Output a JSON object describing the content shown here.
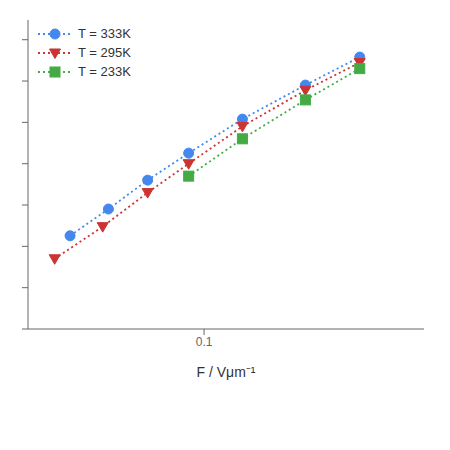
{
  "chart_data": {
    "type": "line",
    "xlabel": "F / Vμm⁻¹",
    "log": true,
    "grid": false,
    "legend": "upper left",
    "tick_labels": "x",
    "line_style": "dotted",
    "xlim": [
      0.03,
      0.45
    ],
    "xticks": [
      0.1
    ],
    "ylim": [
      1e-08,
      0.3
    ],
    "yticks": [
      1e-08,
      1e-07,
      1e-06,
      1e-05,
      0.0001,
      0.001,
      0.01,
      0.1
    ],
    "series": [
      {
        "name": "T = 333K",
        "color": "#4488ee",
        "marker": "circle",
        "x": [
          0.04,
          0.052,
          0.068,
          0.09,
          0.13,
          0.2,
          0.29
        ],
        "values": [
          1.8e-06,
          8e-06,
          4e-05,
          0.00018,
          0.0012,
          0.008,
          0.038
        ]
      },
      {
        "name": "T = 295K",
        "color": "#cc3333",
        "marker": "triangle_down",
        "x": [
          0.036,
          0.05,
          0.068,
          0.09,
          0.13,
          0.2,
          0.29
        ],
        "values": [
          5e-07,
          3e-06,
          2e-05,
          0.0001,
          0.0008,
          0.006,
          0.028
        ]
      },
      {
        "name": "T = 233K",
        "color": "#44aa44",
        "marker": "square",
        "x": [
          0.09,
          0.13,
          0.2,
          0.29
        ],
        "values": [
          5e-05,
          0.0004,
          0.0035,
          0.02
        ]
      }
    ]
  }
}
